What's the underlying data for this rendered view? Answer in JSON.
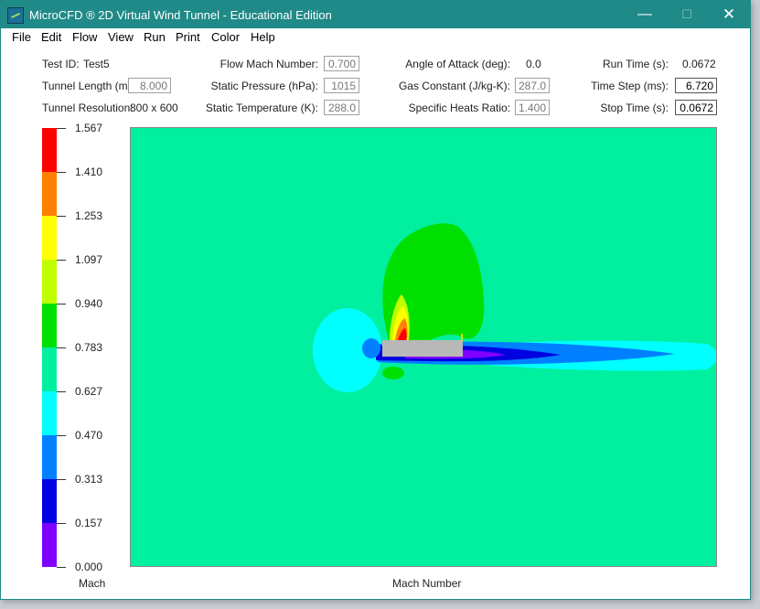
{
  "window": {
    "title": "MicroCFD ® 2D Virtual Wind Tunnel - Educational Edition",
    "controls": {
      "minimize": "—",
      "maximize": "☐",
      "close": "✕"
    }
  },
  "menu": [
    "File",
    "Edit",
    "Flow",
    "View",
    "Run",
    "Print",
    "Color",
    "Help"
  ],
  "params": {
    "test_id_label": "Test ID:",
    "test_id_value": "Test5",
    "tunnel_length_label": "Tunnel Length (m):",
    "tunnel_length_value": "8.000",
    "tunnel_resolution_label": "Tunnel Resolution:",
    "tunnel_resolution_value": "800 x 600",
    "flow_mach_label": "Flow Mach Number:",
    "flow_mach_value": "0.700",
    "static_pressure_label": "Static Pressure (hPa):",
    "static_pressure_value": "1015",
    "static_temperature_label": "Static Temperature (K):",
    "static_temperature_value": "288.0",
    "angle_of_attack_label": "Angle of Attack (deg):",
    "angle_of_attack_value": "0.0",
    "gas_constant_label": "Gas Constant (J/kg-K):",
    "gas_constant_value": "287.0",
    "specific_heats_label": "Specific Heats Ratio:",
    "specific_heats_value": "1.400",
    "run_time_label": "Run Time (s):",
    "run_time_value": "0.0672",
    "time_step_label": "Time Step (ms):",
    "time_step_value": "6.720",
    "stop_time_label": "Stop Time (s):",
    "stop_time_value": "0.0672"
  },
  "legend": {
    "title": "Mach",
    "ticks": [
      "1.567",
      "1.410",
      "1.253",
      "1.097",
      "0.940",
      "0.783",
      "0.627",
      "0.470",
      "0.313",
      "0.157",
      "0.000"
    ],
    "colors": [
      "#ff0000",
      "#ff8000",
      "#ffff00",
      "#c0ff00",
      "#00e000",
      "#00f0a0",
      "#00ffff",
      "#0080ff",
      "#0000e0",
      "#8000ff"
    ]
  },
  "plot": {
    "caption": "Mach Number",
    "background_color": "#00f0a0"
  }
}
